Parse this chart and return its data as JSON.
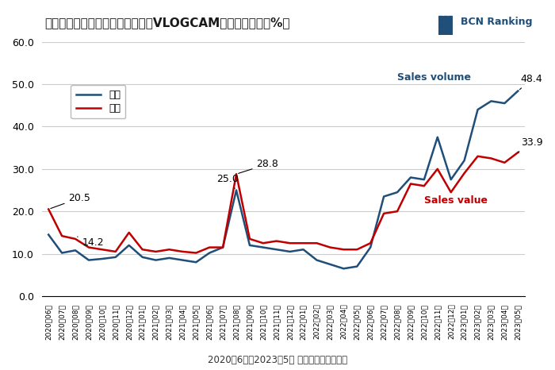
{
  "title": "ソニーのデジタルカメラにおけるVLOGCAMの販売構成比（%）",
  "subtitle": "2020年6月～2023年5月 月次＜最大パネル＞",
  "bcn_logo_text": "BCN Ranking",
  "xlabel": "",
  "ylabel": "",
  "ylim": [
    0.0,
    60.0
  ],
  "yticks": [
    0.0,
    10.0,
    20.0,
    30.0,
    40.0,
    50.0,
    60.0
  ],
  "background_color": "#ffffff",
  "grid_color": "#cccccc",
  "legend_labels": [
    "台数",
    "金額"
  ],
  "line_blue": "#1f4e79",
  "line_red": "#c00000",
  "annotation_color_blue": "#1f3864",
  "annotation_color_red": "#c00000",
  "labels": {
    "20.5": [
      1,
      20.5
    ],
    "14.2": [
      2,
      14.2
    ],
    "25.0": [
      14,
      25.0
    ],
    "28.8": [
      15,
      28.8
    ],
    "48.4": [
      35,
      48.4
    ],
    "33.9": [
      35,
      33.9
    ]
  },
  "x_labels": [
    "2020年06月",
    "2020年07月",
    "2020年08月",
    "2020年09月",
    "2020年10月",
    "2020年11月",
    "2020年12月",
    "2021年01月",
    "2021年02月",
    "2021年03月",
    "2021年04月",
    "2021年05月",
    "2021年06月",
    "2021年07月",
    "2021年08月",
    "2021年09月",
    "2021年10月",
    "2021年11月",
    "2021年12月",
    "2022年01月",
    "2022年02月",
    "2022年03月",
    "2022年04月",
    "2022年05月",
    "2022年06月",
    "2022年07月",
    "2022年08月",
    "2022年09月",
    "2022年10月",
    "2022年11月",
    "2022年12月",
    "2023年01月",
    "2023年02月",
    "2023年03月",
    "2023年04月",
    "2023年05月"
  ],
  "blue_data": [
    14.5,
    10.2,
    10.8,
    8.5,
    8.8,
    9.2,
    12.0,
    9.2,
    8.5,
    9.0,
    8.5,
    8.0,
    10.2,
    11.5,
    25.0,
    12.0,
    11.5,
    11.0,
    10.5,
    11.0,
    8.5,
    7.5,
    6.5,
    7.0,
    11.5,
    23.5,
    24.5,
    28.0,
    27.5,
    37.5,
    27.5,
    32.0,
    44.0,
    46.0,
    45.5,
    48.4
  ],
  "red_data": [
    20.5,
    14.2,
    13.5,
    11.5,
    11.0,
    10.5,
    15.0,
    11.0,
    10.5,
    11.0,
    10.5,
    10.2,
    11.5,
    11.5,
    28.8,
    13.5,
    12.5,
    13.0,
    12.5,
    12.5,
    12.5,
    11.5,
    11.0,
    11.0,
    12.5,
    19.5,
    20.0,
    26.5,
    26.0,
    30.0,
    24.5,
    29.0,
    33.0,
    32.5,
    31.5,
    33.9
  ]
}
